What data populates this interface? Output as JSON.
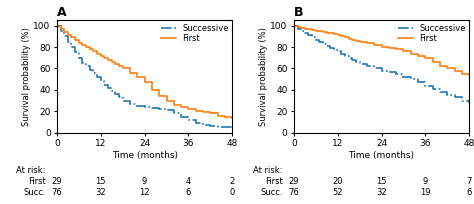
{
  "chart_data": [
    {
      "type": "step",
      "title": "A",
      "x": [
        0,
        1,
        2,
        3,
        4,
        5,
        6,
        7,
        8,
        9,
        10,
        11,
        12,
        13,
        14,
        15,
        16,
        17,
        18,
        20,
        22,
        24,
        26,
        28,
        30,
        32,
        34,
        36,
        38,
        40,
        42,
        44,
        46,
        48
      ],
      "series": [
        {
          "name": "Successive",
          "line_style": "dashdot",
          "values": [
            100,
            95,
            90,
            85,
            80,
            75,
            70,
            65,
            62,
            59,
            56,
            52,
            48,
            45,
            42,
            39,
            36,
            33,
            30,
            27,
            25,
            24,
            23,
            22,
            21,
            18,
            15,
            12,
            9,
            7,
            6,
            5,
            5,
            5
          ]
        },
        {
          "name": "First",
          "line_style": "solid",
          "values": [
            100,
            97,
            94,
            91,
            89,
            87,
            84,
            82,
            80,
            78,
            76,
            74,
            72,
            70,
            68,
            66,
            64,
            62,
            60,
            56,
            52,
            47,
            40,
            34,
            30,
            26,
            24,
            22,
            20,
            19,
            18,
            16,
            15,
            14
          ]
        }
      ],
      "x_label": "Time (months)",
      "y_label": "Survival probability (%)",
      "xlim": [
        0,
        48
      ],
      "ylim": [
        0,
        105
      ],
      "xticks": [
        0,
        12,
        24,
        36,
        48
      ],
      "yticks": [
        0,
        20,
        40,
        60,
        80,
        100
      ],
      "grid": false,
      "legend": "upper right",
      "at_risk": {
        "label": "At risk:",
        "x": [
          0,
          12,
          24,
          36,
          48
        ],
        "rows": [
          {
            "name": "First",
            "values": [
              29,
              15,
              9,
              4,
              2
            ]
          },
          {
            "name": "Succ.",
            "values": [
              76,
              32,
              12,
              6,
              0
            ]
          }
        ]
      }
    },
    {
      "type": "step",
      "title": "B",
      "x": [
        0,
        1,
        2,
        3,
        4,
        5,
        6,
        7,
        8,
        9,
        10,
        11,
        12,
        13,
        14,
        15,
        16,
        17,
        18,
        20,
        22,
        24,
        26,
        28,
        30,
        32,
        34,
        36,
        38,
        40,
        42,
        44,
        46,
        48
      ],
      "series": [
        {
          "name": "Successive",
          "line_style": "dashdot",
          "values": [
            100,
            97,
            95,
            93,
            91,
            89,
            87,
            85,
            83,
            81,
            79,
            77,
            76,
            74,
            72,
            70,
            68,
            66,
            64,
            62,
            60,
            58,
            57,
            55,
            52,
            50,
            47,
            44,
            41,
            38,
            35,
            33,
            30,
            28
          ]
        },
        {
          "name": "First",
          "line_style": "solid",
          "values": [
            100,
            99,
            98,
            97,
            97,
            96,
            95,
            95,
            94,
            93,
            93,
            92,
            91,
            90,
            89,
            88,
            87,
            86,
            85,
            84,
            82,
            80,
            79,
            78,
            76,
            74,
            72,
            70,
            66,
            62,
            60,
            58,
            55,
            54
          ]
        }
      ],
      "x_label": "Time (months)",
      "y_label": "Survival probability (%)",
      "xlim": [
        0,
        48
      ],
      "ylim": [
        0,
        105
      ],
      "xticks": [
        0,
        12,
        24,
        36,
        48
      ],
      "yticks": [
        0,
        20,
        40,
        60,
        80,
        100
      ],
      "grid": false,
      "legend": "upper right",
      "at_risk": {
        "label": "At risk:",
        "x": [
          0,
          12,
          24,
          36,
          48
        ],
        "rows": [
          {
            "name": "First",
            "values": [
              29,
              20,
              15,
              9,
              7
            ]
          },
          {
            "name": "Succ.",
            "values": [
              76,
              52,
              32,
              19,
              6
            ]
          }
        ]
      }
    }
  ]
}
